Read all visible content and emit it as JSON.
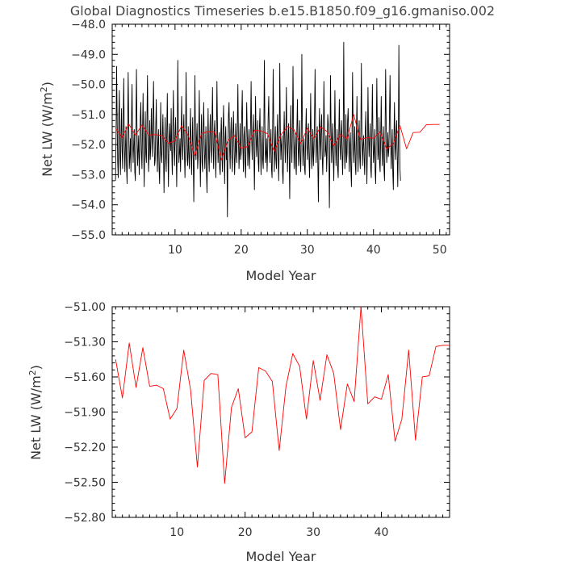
{
  "title": "Global Diagnostics Timeseries b.e15.B1850.f09_g16.gmaniso.002",
  "chart_data": [
    {
      "type": "line",
      "xlabel": "Model Year",
      "ylabel_main": "Net LW (W/m",
      "ylabel_sup": "2",
      "ylabel_close": ")",
      "xlim": [
        0.5,
        51.5
      ],
      "ylim": [
        -55.0,
        -48.0
      ],
      "xticks": [
        10,
        20,
        30,
        40,
        50
      ],
      "yticks": [
        -55.0,
        -54.0,
        -53.0,
        -52.0,
        -51.0,
        -50.0,
        -49.0,
        -48.0
      ],
      "ytick_labels": [
        "−55.0",
        "−54.0",
        "−53.0",
        "−52.0",
        "−51.0",
        "−50.0",
        "−49.0",
        "−48.0"
      ],
      "series": [
        {
          "color": "#000000",
          "x_start": 1.0,
          "x_step": 0.0833333,
          "values": [
            -53.2,
            -51.8,
            -49.4,
            -51.2,
            -52.6,
            -53.1,
            -51.0,
            -50.2,
            -52.4,
            -53.0,
            -51.6,
            -50.8,
            -52.2,
            -52.8,
            -51.1,
            -49.8,
            -51.9,
            -52.9,
            -52.1,
            -51.4,
            -52.7,
            -53.3,
            -51.6,
            -49.6,
            -51.3,
            -52.8,
            -52.4,
            -51.8,
            -52.9,
            -51.2,
            -50.0,
            -51.9,
            -52.6,
            -52.0,
            -51.5,
            -52.9,
            -53.2,
            -51.4,
            -49.5,
            -51.5,
            -52.7,
            -52.2,
            -51.7,
            -53.0,
            -52.3,
            -51.1,
            -50.6,
            -52.2,
            -52.8,
            -51.6,
            -50.3,
            -52.0,
            -53.4,
            -52.1,
            -50.9,
            -52.3,
            -52.6,
            -51.3,
            -49.7,
            -51.7,
            -52.9,
            -52.3,
            -51.2,
            -52.5,
            -52.1,
            -50.8,
            -51.6,
            -52.4,
            -51.0,
            -49.9,
            -51.8,
            -52.7,
            -52.5,
            -51.4,
            -50.5,
            -52.1,
            -52.9,
            -51.9,
            -51.5,
            -52.8,
            -53.3,
            -52.0,
            -50.6,
            -52.3,
            -52.6,
            -51.8,
            -51.0,
            -52.2,
            -53.6,
            -52.3,
            -51.1,
            -52.4,
            -52.9,
            -51.6,
            -50.3,
            -52.1,
            -53.4,
            -52.0,
            -51.3,
            -51.9,
            -52.2,
            -50.8,
            -52.2,
            -53.0,
            -51.4,
            -50.2,
            -52.0,
            -52.7,
            -51.7,
            -51.1,
            -52.1,
            -53.4,
            -51.9,
            -49.2,
            -51.4,
            -52.6,
            -52.3,
            -51.8,
            -52.9,
            -51.8,
            -50.4,
            -51.9,
            -52.5,
            -51.6,
            -51.0,
            -52.3,
            -53.1,
            -52.0,
            -49.6,
            -51.3,
            -52.5,
            -52.7,
            -51.4,
            -52.3,
            -52.8,
            -51.8,
            -50.8,
            -52.1,
            -53.0,
            -52.0,
            -51.1,
            -52.4,
            -53.9,
            -52.2,
            -49.7,
            -51.6,
            -52.5,
            -51.8,
            -51.3,
            -52.8,
            -52.4,
            -51.6,
            -50.2,
            -52.1,
            -53.4,
            -51.9,
            -51.0,
            -52.6,
            -52.9,
            -51.5,
            -50.6,
            -52.0,
            -52.8,
            -52.3,
            -51.4,
            -52.9,
            -53.6,
            -52.0,
            -50.8,
            -52.4,
            -52.9,
            -51.7,
            -51.0,
            -52.2,
            -52.6,
            -51.3,
            -50.1,
            -52.0,
            -52.8,
            -51.6,
            -51.2,
            -52.3,
            -53.1,
            -51.9,
            -49.9,
            -51.4,
            -52.6,
            -52.1,
            -51.6,
            -52.8,
            -53.0,
            -51.7,
            -51.1,
            -52.3,
            -52.9,
            -51.5,
            -50.7,
            -52.2,
            -53.3,
            -51.8,
            -51.4,
            -52.5,
            -52.1,
            -54.4,
            -52.0,
            -51.0,
            -50.6,
            -52.1,
            -52.8,
            -51.6,
            -51.1,
            -52.4,
            -52.9,
            -51.6,
            -50.9,
            -52.0,
            -53.0,
            -52.4,
            -51.3,
            -52.2,
            -52.6,
            -51.4,
            -50.0,
            -51.8,
            -52.8,
            -52.2,
            -51.3,
            -52.5,
            -52.3,
            -51.0,
            -50.2,
            -52.0,
            -52.9,
            -51.7,
            -51.4,
            -52.6,
            -53.1,
            -51.8,
            -50.6,
            -51.6,
            -52.7,
            -52.1,
            -51.5,
            -52.8,
            -52.2,
            -51.3,
            -49.9,
            -51.8,
            -52.5,
            -51.6,
            -51.0,
            -52.2,
            -53.5,
            -52.0,
            -50.4,
            -51.7,
            -52.4,
            -51.9,
            -51.2,
            -52.6,
            -52.9,
            -51.5,
            -50.8,
            -52.1,
            -53.0,
            -52.2,
            -51.4,
            -52.5,
            -52.8,
            -51.7,
            -49.2,
            -51.3,
            -52.6,
            -52.3,
            -51.8,
            -52.9,
            -52.2,
            -51.0,
            -50.4,
            -51.8,
            -52.6,
            -51.9,
            -51.5,
            -52.8,
            -53.1,
            -51.6,
            -49.5,
            -51.4,
            -52.9,
            -52.2,
            -51.4,
            -52.5,
            -52.8,
            -51.7,
            -51.0,
            -52.2,
            -53.2,
            -52.1,
            -49.3,
            -51.5,
            -52.5,
            -52.0,
            -51.7,
            -52.9,
            -53.3,
            -52.0,
            -50.9,
            -51.9,
            -52.6,
            -51.5,
            -50.1,
            -52.0,
            -52.9,
            -51.8,
            -51.3,
            -52.3,
            -53.8,
            -51.9,
            -50.7,
            -52.0,
            -52.6,
            -51.4,
            -49.4,
            -51.6,
            -52.8,
            -52.2,
            -51.6,
            -52.7,
            -53.0,
            -51.5,
            -50.5,
            -51.9,
            -52.7,
            -52.0,
            -51.2,
            -52.5,
            -52.9,
            -51.6,
            -49.0,
            -51.4,
            -52.7,
            -52.1,
            -51.8,
            -52.8,
            -53.0,
            -51.6,
            -50.8,
            -52.0,
            -52.5,
            -51.7,
            -51.3,
            -52.4,
            -53.1,
            -51.9,
            -50.3,
            -51.8,
            -52.8,
            -52.3,
            -51.5,
            -52.7,
            -52.2,
            -51.1,
            -49.5,
            -51.6,
            -52.6,
            -51.9,
            -51.4,
            -52.6,
            -53.9,
            -52.1,
            -50.8,
            -51.7,
            -52.5,
            -51.5,
            -51.0,
            -52.4,
            -53.0,
            -52.0,
            -49.9,
            -51.3,
            -52.4,
            -52.2,
            -51.7,
            -52.9,
            -52.2,
            -51.0,
            -51.3,
            -52.1,
            -54.1,
            -52.3,
            -49.7,
            -51.4,
            -52.6,
            -52.0,
            -51.3,
            -52.5,
            -53.2,
            -51.8,
            -50.2,
            -51.9,
            -52.7,
            -52.1,
            -51.5,
            -52.8,
            -53.1,
            -51.7,
            -50.5,
            -52.0,
            -52.5,
            -51.6,
            -51.2,
            -52.3,
            -53.0,
            -51.9,
            -48.6,
            -51.5,
            -52.8,
            -52.2,
            -51.0,
            -52.6,
            -52.3,
            -51.2,
            -50.8,
            -51.9,
            -52.9,
            -52.0,
            -51.6,
            -52.8,
            -53.4,
            -51.8,
            -49.6,
            -51.4,
            -52.6,
            -52.1,
            -51.4,
            -52.7,
            -53.0,
            -51.6,
            -50.4,
            -52.1,
            -52.9,
            -51.8,
            -51.2,
            -52.4,
            -52.8,
            -51.5,
            -49.3,
            -51.6,
            -52.7,
            -52.0,
            -51.7,
            -52.5,
            -53.0,
            -51.6,
            -50.9,
            -52.2,
            -53.3,
            -52.1,
            -50.1,
            -51.7,
            -52.4,
            -51.8,
            -51.3,
            -52.8,
            -53.1,
            -51.5,
            -50.0,
            -51.8,
            -52.6,
            -52.2,
            -51.5,
            -52.9,
            -53.3,
            -51.7,
            -49.8,
            -51.4,
            -52.5,
            -52.3,
            -51.1,
            -52.6,
            -52.9,
            -51.8,
            -50.4,
            -51.9,
            -52.7,
            -52.0,
            -51.4,
            -52.8,
            -53.2,
            -51.6,
            -49.5,
            -51.3,
            -52.6,
            -52.2,
            -51.6,
            -52.4,
            -52.1,
            -51.0,
            -49.7,
            -51.7,
            -52.8,
            -52.2,
            -51.5,
            -52.9,
            -53.5,
            -51.9,
            -50.6,
            -52.0,
            -52.5,
            -51.6,
            -51.2,
            -52.3,
            -53.4,
            -52.0,
            -48.7,
            -51.5,
            -52.8,
            -53.2
          ]
        },
        {
          "color": "#ff0000",
          "x": [
            1,
            2,
            3,
            4,
            5,
            6,
            7,
            8,
            9,
            10,
            11,
            12,
            13,
            14,
            15,
            16,
            17,
            18,
            19,
            20,
            21,
            22,
            23,
            24,
            25,
            26,
            27,
            28,
            29,
            30,
            31,
            32,
            33,
            34,
            35,
            36,
            37,
            38,
            39,
            40,
            41,
            42,
            43,
            44,
            45,
            46,
            47,
            48,
            49,
            50
          ],
          "values": [
            -51.45,
            -51.78,
            -51.31,
            -51.69,
            -51.35,
            -51.68,
            -51.67,
            -51.7,
            -51.96,
            -51.87,
            -51.37,
            -51.71,
            -52.37,
            -51.63,
            -51.57,
            -51.58,
            -52.51,
            -51.86,
            -51.7,
            -52.12,
            -52.07,
            -51.52,
            -51.55,
            -51.64,
            -52.23,
            -51.68,
            -51.4,
            -51.51,
            -51.96,
            -51.46,
            -51.8,
            -51.41,
            -51.57,
            -52.05,
            -51.66,
            -51.81,
            -51.0,
            -51.83,
            -51.77,
            -51.79,
            -51.58,
            -52.15,
            -51.96,
            -51.37,
            -52.14,
            -51.6,
            -51.59,
            -51.34,
            -51.33,
            -51.33
          ]
        }
      ]
    },
    {
      "type": "line",
      "xlabel": "Model Year",
      "ylabel_main": "Net LW (W/m",
      "ylabel_sup": "2",
      "ylabel_close": ")",
      "xlim": [
        0.5,
        50.0
      ],
      "ylim": [
        -52.8,
        -51.0
      ],
      "xticks": [
        10,
        20,
        30,
        40
      ],
      "yticks": [
        -52.8,
        -52.5,
        -52.2,
        -51.9,
        -51.6,
        -51.3,
        -51.0
      ],
      "ytick_labels": [
        "−52.80",
        "−52.50",
        "−52.20",
        "−51.90",
        "−51.60",
        "−51.30",
        "−51.00"
      ],
      "series": [
        {
          "color": "#ff0000",
          "x": [
            1,
            2,
            3,
            4,
            5,
            6,
            7,
            8,
            9,
            10,
            11,
            12,
            13,
            14,
            15,
            16,
            17,
            18,
            19,
            20,
            21,
            22,
            23,
            24,
            25,
            26,
            27,
            28,
            29,
            30,
            31,
            32,
            33,
            34,
            35,
            36,
            37,
            38,
            39,
            40,
            41,
            42,
            43,
            44,
            45,
            46,
            47,
            48,
            49,
            50
          ],
          "values": [
            -51.45,
            -51.78,
            -51.31,
            -51.69,
            -51.35,
            -51.68,
            -51.67,
            -51.7,
            -51.96,
            -51.87,
            -51.37,
            -51.71,
            -52.37,
            -51.63,
            -51.57,
            -51.58,
            -52.51,
            -51.86,
            -51.7,
            -52.12,
            -52.07,
            -51.52,
            -51.55,
            -51.64,
            -52.23,
            -51.68,
            -51.4,
            -51.51,
            -51.96,
            -51.46,
            -51.8,
            -51.41,
            -51.57,
            -52.05,
            -51.66,
            -51.81,
            -51.0,
            -51.83,
            -51.77,
            -51.79,
            -51.58,
            -52.15,
            -51.96,
            -51.37,
            -52.14,
            -51.6,
            -51.59,
            -51.34,
            -51.33,
            -51.33
          ]
        }
      ]
    }
  ]
}
